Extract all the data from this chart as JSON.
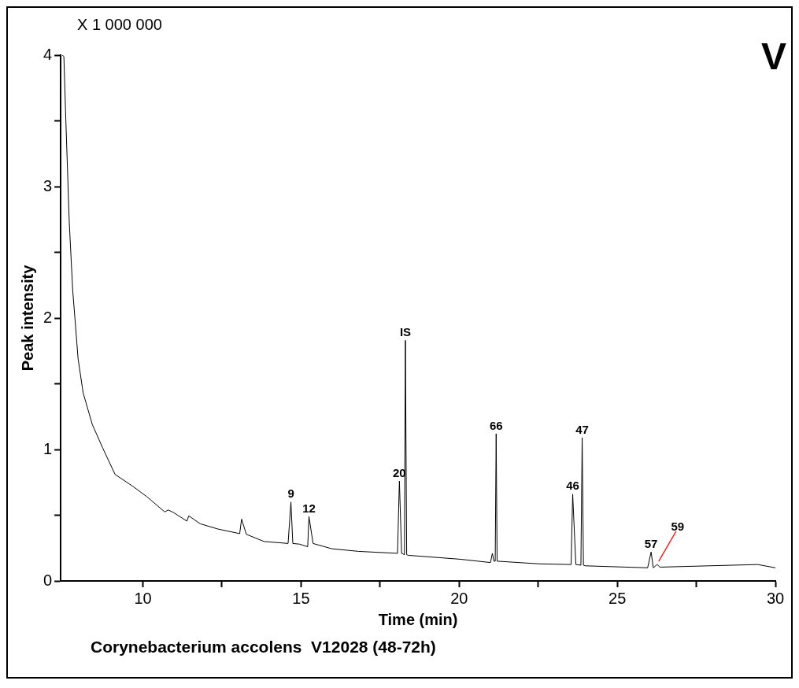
{
  "chart_data": {
    "type": "line",
    "xlabel": "Time (min)",
    "ylabel": "Peak intensity",
    "annotations": [
      "X 1 000 000",
      "V",
      "Corynebacterium accolens  V12028 (48-72h)",
      {
        "text": "9",
        "x": 14.68,
        "y": 0.6
      },
      {
        "text": "12",
        "x": 15.25,
        "y": 0.49
      },
      {
        "text": "20",
        "x": 18.11,
        "y": 0.76
      },
      {
        "text": "IS",
        "x": 18.3,
        "y": 1.83
      },
      {
        "text": "66",
        "x": 21.17,
        "y": 1.12
      },
      {
        "text": "46",
        "x": 23.59,
        "y": 0.66
      },
      {
        "text": "47",
        "x": 23.89,
        "y": 1.09
      },
      {
        "text": "57",
        "x": 26.07,
        "y": 0.22
      },
      {
        "text": "59",
        "x": 26.26,
        "y": 0.125
      }
    ],
    "series": [
      {
        "color": "#000000",
        "x": [
          7.45,
          7.5,
          7.56,
          7.67,
          7.78,
          7.95,
          8.11,
          8.4,
          8.73,
          9.12,
          9.68,
          10.13,
          10.69,
          10.8,
          10.97,
          11.39,
          11.45,
          11.81,
          12.37,
          13.06,
          13.12,
          13.27,
          13.83,
          14.59,
          14.68,
          14.74,
          14.95,
          15.21,
          15.25,
          15.38,
          15.97,
          16.82,
          18.05,
          18.11,
          18.18,
          18.27,
          18.3,
          18.34,
          18.39,
          20.04,
          20.99,
          21.05,
          21.1,
          21.14,
          21.17,
          21.2,
          21.23,
          22.53,
          23.54,
          23.59,
          23.69,
          23.85,
          23.89,
          23.93,
          23.99,
          25.96,
          26.07,
          26.14,
          26.26,
          26.35,
          29.44,
          30
        ],
        "values": [
          4.0,
          3.99,
          3.52,
          2.73,
          2.21,
          1.69,
          1.43,
          1.19,
          1.01,
          0.81,
          0.72,
          0.64,
          0.525,
          0.54,
          0.52,
          0.455,
          0.495,
          0.435,
          0.395,
          0.36,
          0.47,
          0.355,
          0.3,
          0.285,
          0.6,
          0.285,
          0.28,
          0.26,
          0.49,
          0.285,
          0.245,
          0.225,
          0.21,
          0.76,
          0.21,
          0.2,
          1.83,
          0.2,
          0.195,
          0.165,
          0.14,
          0.21,
          0.15,
          0.15,
          1.12,
          0.15,
          0.15,
          0.13,
          0.125,
          0.66,
          0.125,
          0.12,
          1.09,
          0.12,
          0.115,
          0.1,
          0.22,
          0.1,
          0.125,
          0.105,
          0.125,
          0.1
        ]
      }
    ],
    "xlim": [
      7.4,
      30
    ],
    "xticks": [
      10,
      {
        "value": 12.5,
        "label": null
      },
      15,
      {
        "value": 17.5,
        "label": null
      },
      20,
      {
        "value": 22.5,
        "label": null
      },
      25,
      {
        "value": 27.5,
        "label": null
      },
      30
    ],
    "ylim": [
      0,
      4
    ],
    "yticks": [
      0,
      {
        "value": 0.5,
        "label": null
      },
      1,
      {
        "value": 1.5,
        "label": null
      },
      2,
      {
        "value": 2.5,
        "label": null
      },
      3,
      {
        "value": 3.5,
        "label": null
      },
      4
    ],
    "grid": false,
    "legend": false,
    "marker": "none",
    "line_style": "solid"
  }
}
